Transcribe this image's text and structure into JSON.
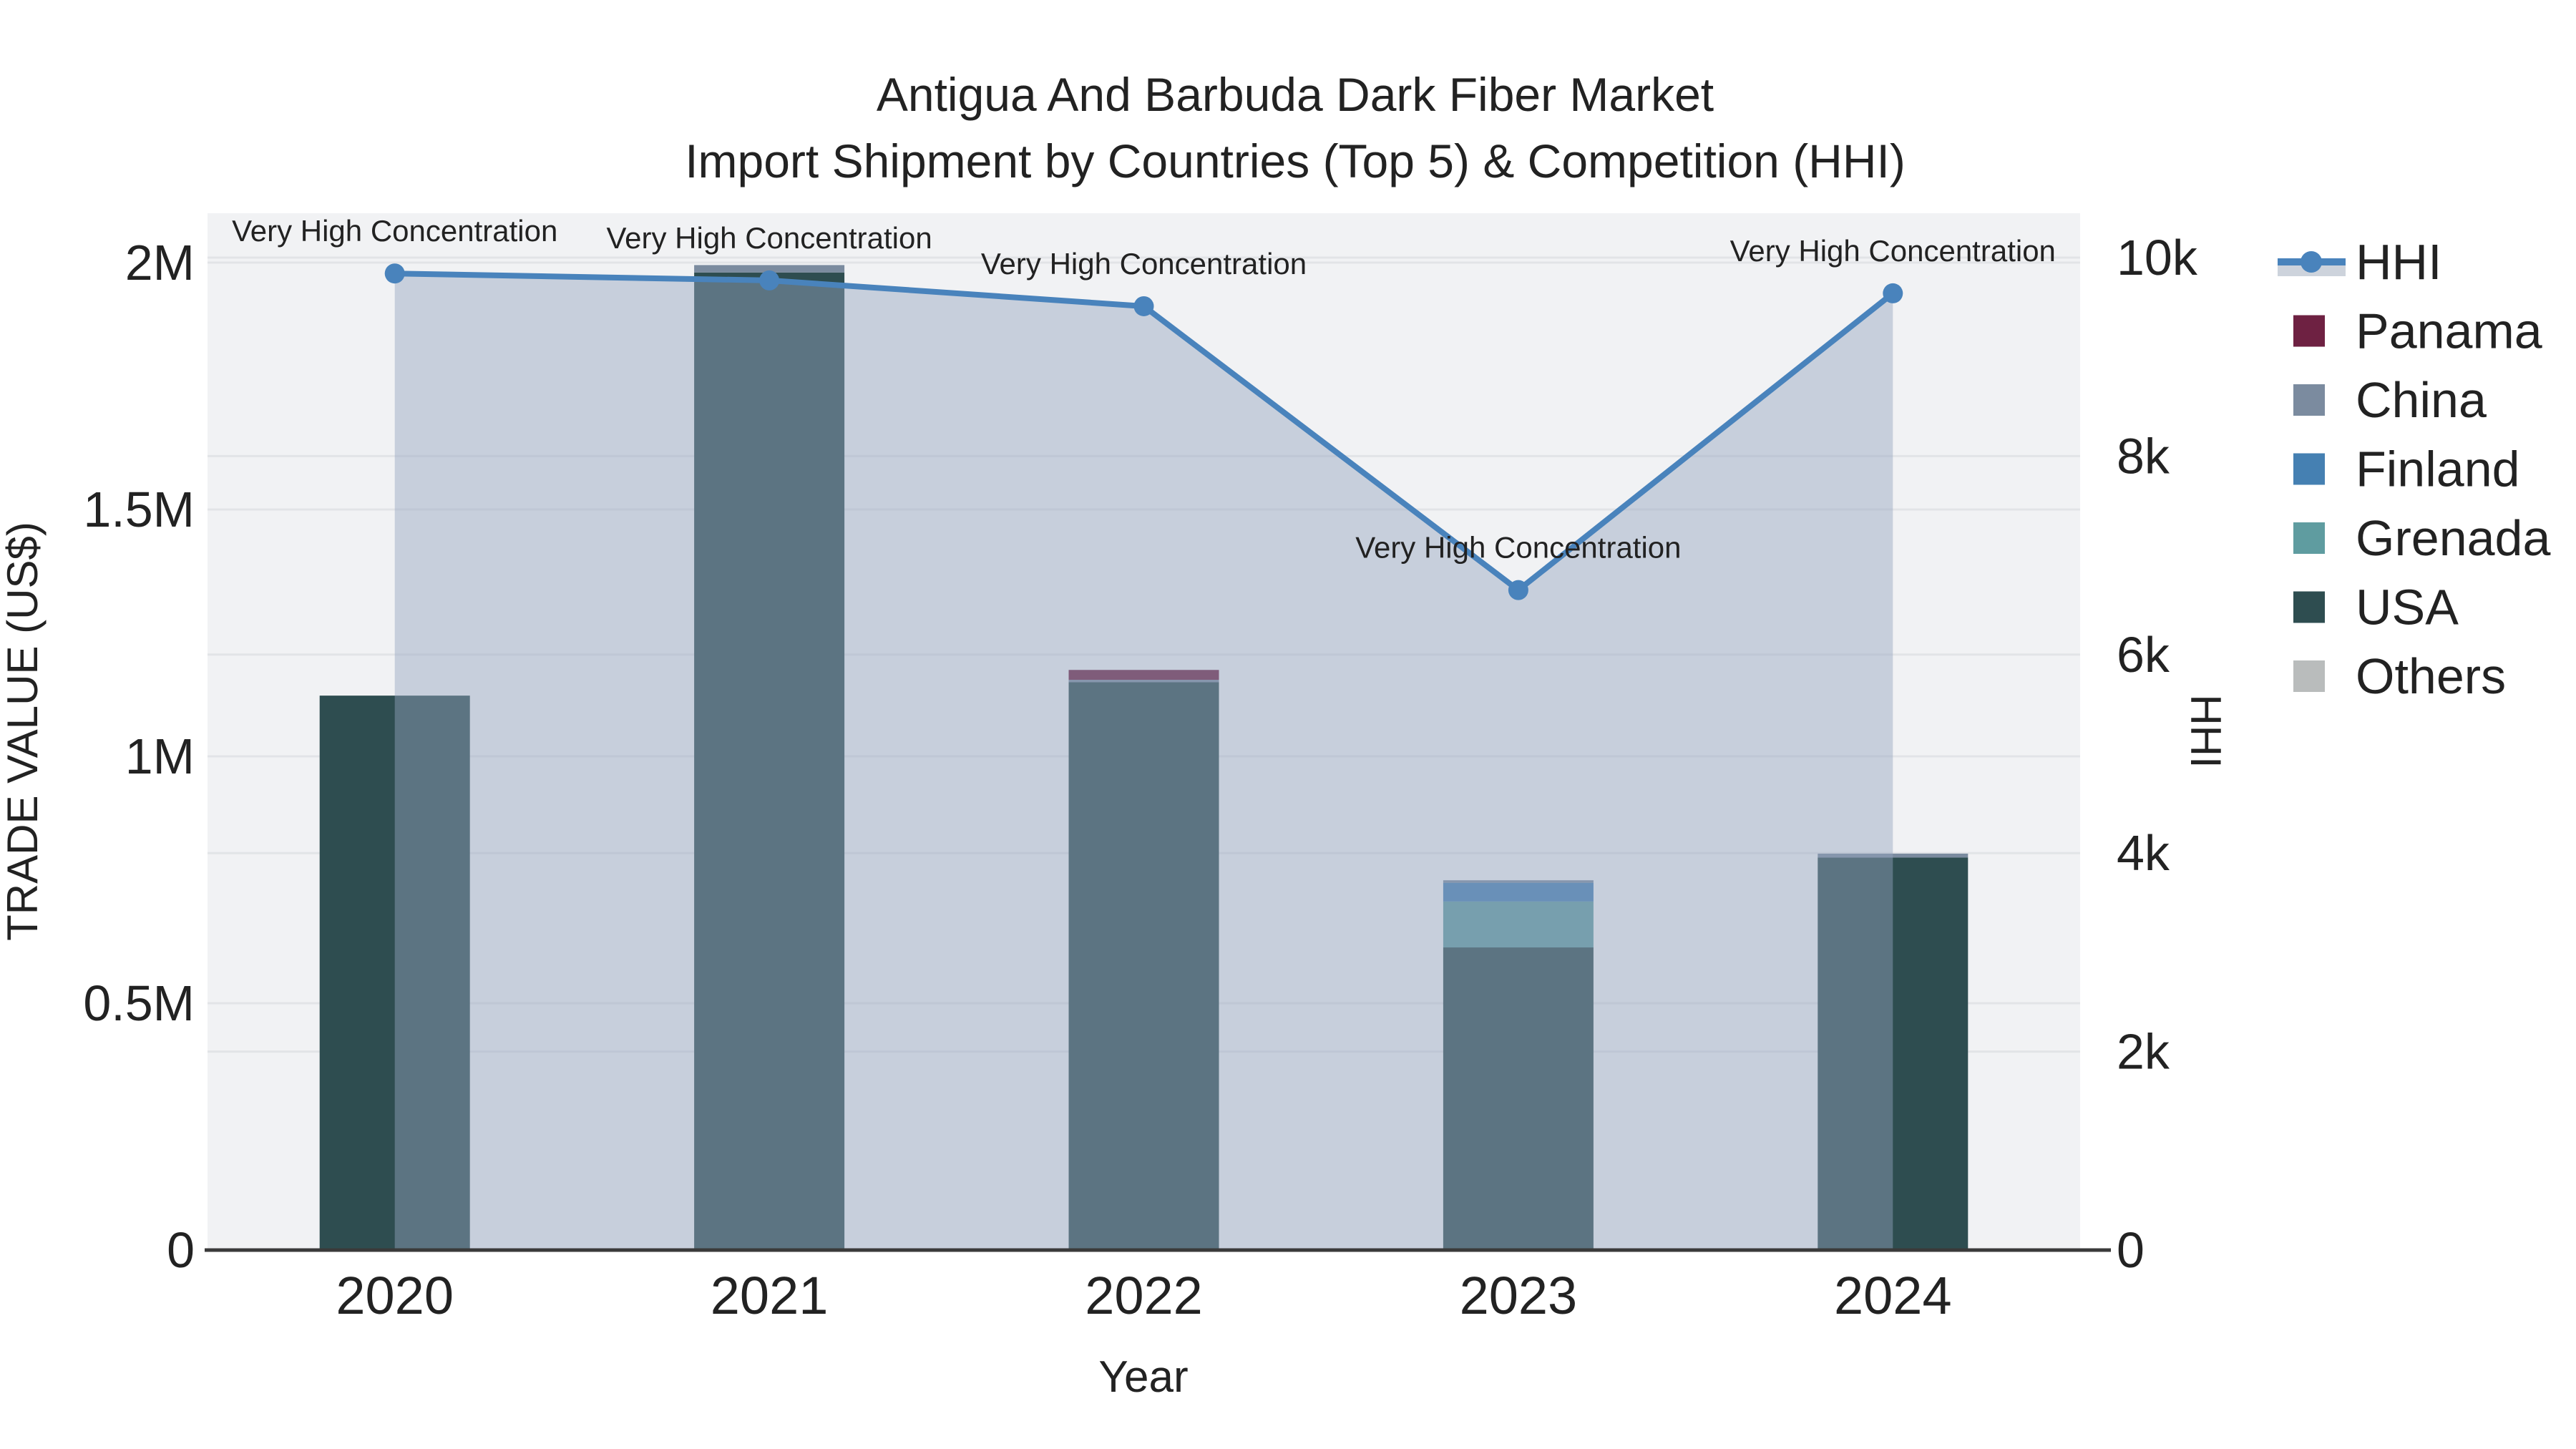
{
  "title": {
    "line1": "Antigua And Barbuda Dark Fiber Market",
    "line2": "Import Shipment by Countries (Top 5) & Competition (HHI)"
  },
  "axes": {
    "left": {
      "title": "TRADE VALUE (US$)",
      "range": [
        0,
        2000000
      ],
      "ticks": [
        {
          "v": 0,
          "label": "0"
        },
        {
          "v": 500000,
          "label": "0.5M"
        },
        {
          "v": 1000000,
          "label": "1M"
        },
        {
          "v": 1500000,
          "label": "1.5M"
        },
        {
          "v": 2000000,
          "label": "2M"
        }
      ]
    },
    "right": {
      "title": "HHI",
      "range": [
        0,
        10000
      ],
      "ticks": [
        {
          "v": 0,
          "label": "0"
        },
        {
          "v": 2000,
          "label": "2k"
        },
        {
          "v": 4000,
          "label": "4k"
        },
        {
          "v": 6000,
          "label": "6k"
        },
        {
          "v": 8000,
          "label": "8k"
        },
        {
          "v": 10000,
          "label": "10k"
        }
      ]
    },
    "x": {
      "title": "Year",
      "categories": [
        "2020",
        "2021",
        "2022",
        "2023",
        "2024"
      ]
    }
  },
  "colors": {
    "plot_background": "#F1F2F4",
    "gridline": "#E2E4E7",
    "axis_line": "#3A3A3A",
    "hhi_line": "#4983BC",
    "hhi_area": "rgba(148,163,191,0.45)",
    "annotation_text": "#111111"
  },
  "chart_data": {
    "type": "bar",
    "subtype": "stacked-bars-with-line-overlay",
    "title": "Antigua And Barbuda Dark Fiber Market — Import Shipment by Countries (Top 5) & Competition (HHI)",
    "categories": [
      "2020",
      "2021",
      "2022",
      "2023",
      "2024"
    ],
    "xlabel": "Year",
    "ylabel_left": "TRADE VALUE (US$)",
    "ylabel_right": "HHI",
    "ylim_left": [
      0,
      2000000
    ],
    "ylim_right": [
      0,
      10000
    ],
    "grid": true,
    "legend_position": "right",
    "series": [
      {
        "name": "USA",
        "type": "bar",
        "color": "#2E4D50",
        "values": [
          1123000,
          1980000,
          1150000,
          613000,
          795000
        ]
      },
      {
        "name": "Grenada",
        "type": "bar",
        "color": "#5F9CA0",
        "values": [
          0,
          0,
          0,
          93000,
          0
        ]
      },
      {
        "name": "Finland",
        "type": "bar",
        "color": "#4580B2",
        "values": [
          0,
          0,
          0,
          38000,
          0
        ]
      },
      {
        "name": "China",
        "type": "bar",
        "color": "#7B8B9F",
        "values": [
          0,
          15000,
          5000,
          5000,
          8000
        ]
      },
      {
        "name": "Panama",
        "type": "bar",
        "color": "#6E2142",
        "values": [
          0,
          0,
          20000,
          0,
          0
        ]
      },
      {
        "name": "Others",
        "type": "bar",
        "color": "#B9BCBC",
        "values": [
          0,
          0,
          0,
          0,
          0
        ]
      }
    ],
    "line_series": {
      "name": "HHI",
      "axis": "right",
      "color": "#4983BC",
      "marker": "circle",
      "area_fill": "rgba(148,163,191,0.45)",
      "values": [
        9840,
        9770,
        9510,
        6650,
        9640
      ]
    },
    "annotations": [
      "Very High Concentration",
      "Very High Concentration",
      "Very High Concentration",
      "Very High Concentration",
      "Very High Concentration"
    ],
    "legend_order": [
      "HHI",
      "Panama",
      "China",
      "Finland",
      "Grenada",
      "USA",
      "Others"
    ]
  }
}
